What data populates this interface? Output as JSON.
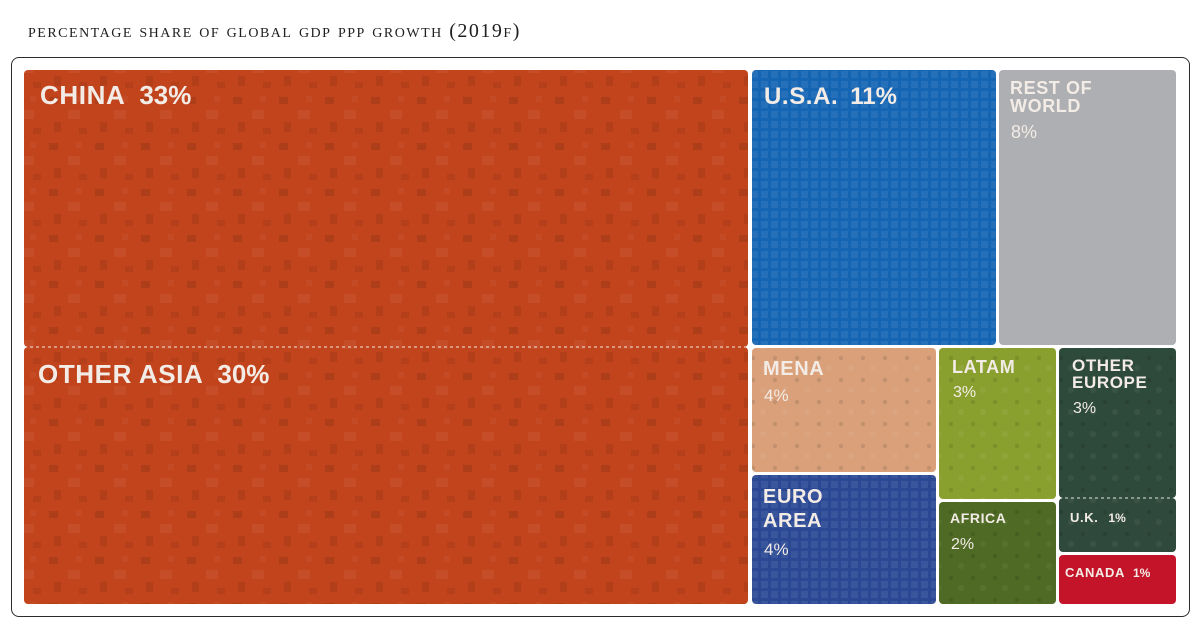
{
  "chart_data": {
    "type": "treemap",
    "title": "PERCENTAGE SHARE OF GLOBAL GDP PPP GROWTH (2019F)",
    "unit": "%",
    "items": [
      {
        "id": "china",
        "lines": [
          "CHINA"
        ],
        "value_label": "33%",
        "value": 33,
        "color": "#c2441c"
      },
      {
        "id": "other-asia",
        "lines": [
          "OTHER ASIA"
        ],
        "value_label": "30%",
        "value": 30,
        "color": "#c2441c"
      },
      {
        "id": "usa",
        "lines": [
          "U.S.A."
        ],
        "value_label": "11%",
        "value": 11,
        "color": "#1565b5"
      },
      {
        "id": "rest-of-world",
        "lines": [
          "REST OF",
          "WORLD"
        ],
        "value_label": "8%",
        "value": 8,
        "color": "#aeafb2"
      },
      {
        "id": "mena",
        "lines": [
          "MENA"
        ],
        "value_label": "4%",
        "value": 4,
        "color": "#d9a07a"
      },
      {
        "id": "euro-area",
        "lines": [
          "EURO",
          "AREA"
        ],
        "value_label": "4%",
        "value": 4,
        "color": "#2a4893"
      },
      {
        "id": "latam",
        "lines": [
          "LATAM"
        ],
        "value_label": "3%",
        "value": 3,
        "color": "#8aa02e"
      },
      {
        "id": "other-europe",
        "lines": [
          "OTHER",
          "EUROPE"
        ],
        "value_label": "3%",
        "value": 3,
        "color": "#2e4a3a"
      },
      {
        "id": "africa",
        "lines": [
          "AFRICA"
        ],
        "value_label": "2%",
        "value": 2,
        "color": "#4e6a24"
      },
      {
        "id": "uk",
        "lines": [
          "U.K."
        ],
        "value_label": "1%",
        "value": 1,
        "color": "#2f4a3c"
      },
      {
        "id": "canada",
        "lines": [
          "CANADA"
        ],
        "value_label": "1%",
        "value": 1,
        "color": "#c4142a"
      }
    ]
  }
}
